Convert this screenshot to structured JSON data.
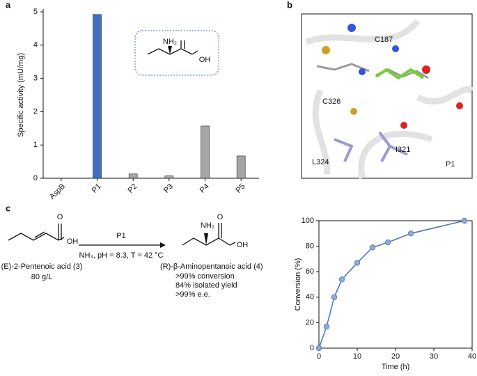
{
  "panel_labels": [
    "a",
    "b",
    "c"
  ],
  "inset_atoms": [
    "NH₂",
    "OH"
  ],
  "structure_labels": [
    "C187",
    "C326",
    "L324",
    "I321",
    "P1"
  ],
  "scheme": {
    "catalyst": "P1",
    "conditions": "NH₃, pH = 8.3, T = 42 °C",
    "substrate_atoms": [
      "O",
      "OH"
    ],
    "substrate_name": "(E)-2-Pentenoic acid (3)",
    "substrate_amount": "80 g/L",
    "product_atoms": [
      "NH₂",
      "O",
      "OH"
    ],
    "product_name": "(R)-β-Aminopentanoic acid (4)",
    "product_notes": [
      ">99% conversion",
      "84% isolated yield",
      ">99% e.e."
    ]
  },
  "chart_data": [
    {
      "type": "bar",
      "y_label": "Specific activity (mU/mg)",
      "categories": [
        "AspB",
        "P1",
        "P2",
        "P3",
        "P4",
        "P5"
      ],
      "values": [
        0,
        4.92,
        0.13,
        0.07,
        1.57,
        0.67
      ],
      "colors": [
        "#a6a6a6",
        "#3f6fc1",
        "#a6a6a6",
        "#a6a6a6",
        "#a6a6a6",
        "#a6a6a6"
      ],
      "ylim": [
        0,
        5
      ],
      "yticks": [
        0,
        1,
        2,
        3,
        4,
        5
      ]
    },
    {
      "type": "line",
      "x_label": "Time (h)",
      "y_label": "Conversion (%)",
      "x": [
        0,
        2,
        4,
        6,
        10,
        14,
        18,
        24,
        38
      ],
      "values": [
        0,
        17,
        40,
        54,
        67,
        79,
        83,
        90,
        100
      ],
      "color": "#4a79b8",
      "marker_color": "#8fa9d6",
      "xlim": [
        0,
        40
      ],
      "xticks": [
        0,
        10,
        20,
        30,
        40
      ],
      "ylim": [
        0,
        100
      ],
      "yticks": [
        0,
        20,
        40,
        60,
        80,
        100
      ]
    }
  ]
}
